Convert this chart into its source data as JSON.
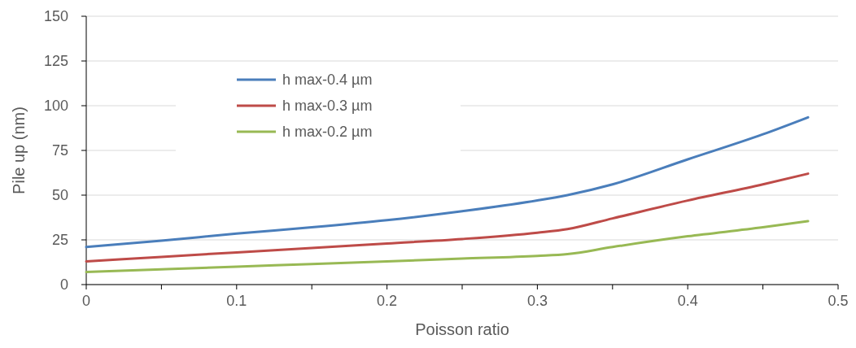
{
  "chart_data": {
    "type": "line",
    "xlabel": "Poisson ratio",
    "ylabel": "Pile up (nm)",
    "xlim": [
      0,
      0.5
    ],
    "xticks": [
      0,
      {
        "value": 0.05,
        "label": null
      },
      0.1,
      {
        "value": 0.15,
        "label": null
      },
      0.2,
      {
        "value": 0.25,
        "label": null
      },
      0.3,
      {
        "value": 0.35,
        "label": null
      },
      0.4,
      {
        "value": 0.45,
        "label": null
      },
      0.5
    ],
    "ylim": [
      0,
      150
    ],
    "yticks": [
      0,
      25,
      50,
      75,
      100,
      125,
      150
    ],
    "grid": "y",
    "legend": "top left",
    "marker": "none",
    "line_style": "solid",
    "x": [
      0,
      0.05,
      0.1,
      0.15,
      0.2,
      0.25,
      0.3,
      0.32,
      0.35,
      0.4,
      0.45,
      0.48
    ],
    "series": [
      {
        "name": "h max-0.4 µm",
        "color": "#4a7ebb",
        "values": [
          21,
          24.5,
          28.5,
          32,
          36,
          41,
          47,
          50,
          56,
          70,
          84,
          93.5
        ]
      },
      {
        "name": "h max-0.3 µm",
        "color": "#be4b48",
        "values": [
          13,
          15.5,
          18,
          20.5,
          23,
          25.5,
          29,
          31,
          37,
          47,
          56,
          62
        ]
      },
      {
        "name": "h max-0.2 µm",
        "color": "#98b954",
        "values": [
          7,
          8.5,
          10,
          11.5,
          13,
          14.5,
          16,
          17,
          21,
          27,
          32,
          35.5
        ]
      }
    ]
  }
}
